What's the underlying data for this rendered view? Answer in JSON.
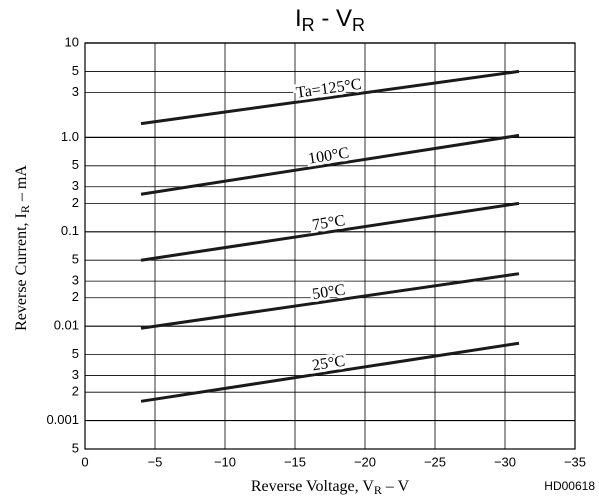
{
  "chart_data": {
    "type": "line",
    "title": [
      "I",
      "R",
      " - V",
      "R"
    ],
    "xlabel": [
      "Reverse Voltage, V",
      "R",
      " – V"
    ],
    "ylabel": [
      "Reverse Current, I",
      "R",
      " – mA"
    ],
    "note": "HD00618",
    "log_y": true,
    "grid": true,
    "xlim": [
      0,
      -35
    ],
    "xticks": [
      0,
      {
        "value": -5,
        "label": "−5"
      },
      {
        "value": -10,
        "label": "−10"
      },
      {
        "value": -15,
        "label": "−15"
      },
      {
        "value": -20,
        "label": "−20"
      },
      {
        "value": -25,
        "label": "−25"
      },
      {
        "value": -30,
        "label": "−30"
      },
      {
        "value": -35,
        "label": "−35"
      }
    ],
    "ylim": [
      0.0005,
      10
    ],
    "yticks": [
      10,
      5,
      3,
      {
        "value": 1,
        "label": "1.0"
      },
      {
        "value": 0.5,
        "label": "5"
      },
      {
        "value": 0.3,
        "label": "3"
      },
      {
        "value": 0.2,
        "label": "2"
      },
      0.1,
      {
        "value": 0.05,
        "label": "5"
      },
      {
        "value": 0.03,
        "label": "3"
      },
      {
        "value": 0.02,
        "label": "2"
      },
      0.01,
      {
        "value": 0.005,
        "label": "5"
      },
      {
        "value": 0.003,
        "label": "3"
      },
      {
        "value": 0.002,
        "label": "2"
      },
      0.001,
      {
        "value": 0.0005,
        "label": "5"
      }
    ],
    "series": [
      {
        "name": "Ta=125°C",
        "color": "#1a1a1a",
        "x": [
          -4,
          -31
        ],
        "values": [
          1.4,
          5
        ]
      },
      {
        "name": "100°C",
        "color": "#1a1a1a",
        "x": [
          -4,
          -31
        ],
        "values": [
          0.25,
          1.05
        ]
      },
      {
        "name": "75°C",
        "color": "#1a1a1a",
        "x": [
          -4,
          -31
        ],
        "values": [
          0.05,
          0.2
        ]
      },
      {
        "name": "50°C",
        "color": "#1a1a1a",
        "x": [
          -4,
          -31
        ],
        "values": [
          0.0095,
          0.036
        ]
      },
      {
        "name": "25°C",
        "color": "#1a1a1a",
        "x": [
          -4,
          -31
        ],
        "values": [
          0.0016,
          0.0066
        ]
      }
    ]
  }
}
